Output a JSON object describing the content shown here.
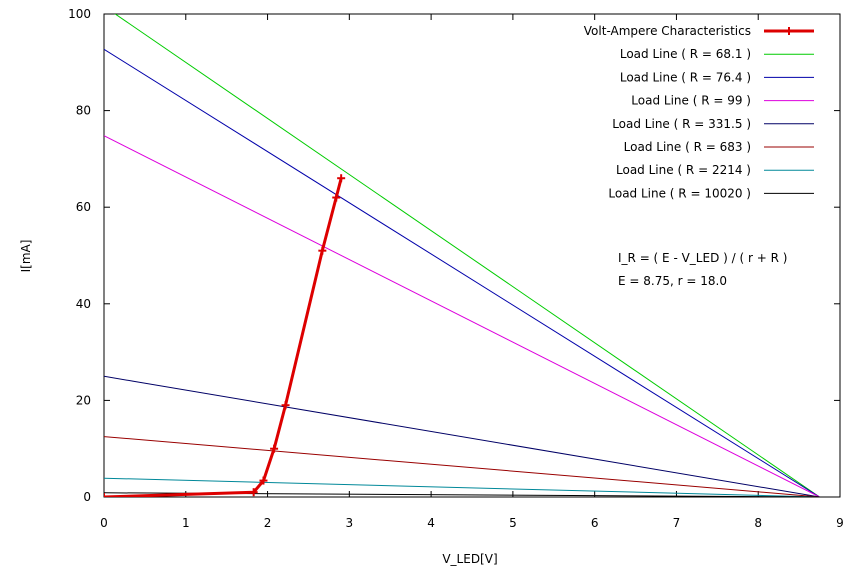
{
  "chart_data": {
    "type": "line",
    "title": "",
    "xlabel": "V_LED[V]",
    "ylabel": "I[mA]",
    "xlim": [
      0,
      9
    ],
    "ylim": [
      0,
      100
    ],
    "x_ticks": [
      0,
      1,
      2,
      3,
      4,
      5,
      6,
      7,
      8,
      9
    ],
    "y_ticks": [
      0,
      20,
      40,
      60,
      80,
      100
    ],
    "grid": false,
    "legend_position": "top-right",
    "series": [
      {
        "name": "Volt-Ampere Characteristics",
        "color": "#dd0000",
        "style": "line-with-markers",
        "points": [
          [
            0,
            0
          ],
          [
            1.83,
            1.0
          ],
          [
            1.95,
            3.4
          ],
          [
            2.08,
            10.0
          ],
          [
            2.22,
            19.0
          ],
          [
            2.67,
            51.0
          ],
          [
            2.84,
            62.0
          ],
          [
            2.9,
            66.0
          ]
        ]
      },
      {
        "name": "Load Line ( R = 68.1 )",
        "color": "#00cc00",
        "style": "line",
        "points": [
          [
            0,
            101.6
          ],
          [
            8.75,
            0
          ]
        ]
      },
      {
        "name": "Load Line ( R = 76.4 )",
        "color": "#0000aa",
        "style": "line",
        "points": [
          [
            0,
            92.7
          ],
          [
            8.75,
            0
          ]
        ]
      },
      {
        "name": "Load Line ( R = 99 )",
        "color": "#dd00dd",
        "style": "line",
        "points": [
          [
            0,
            74.8
          ],
          [
            8.75,
            0
          ]
        ]
      },
      {
        "name": "Load Line ( R = 331.5 )",
        "color": "#000066",
        "style": "line",
        "points": [
          [
            0,
            25.0
          ],
          [
            8.75,
            0
          ]
        ]
      },
      {
        "name": "Load Line ( R = 683 )",
        "color": "#990000",
        "style": "line",
        "points": [
          [
            0,
            12.5
          ],
          [
            8.75,
            0
          ]
        ]
      },
      {
        "name": "Load Line ( R = 2214 )",
        "color": "#008899",
        "style": "line",
        "points": [
          [
            0,
            3.9
          ],
          [
            8.75,
            0
          ]
        ]
      },
      {
        "name": "Load Line ( R = 10020 )",
        "color": "#000000",
        "style": "line",
        "points": [
          [
            0,
            0.87
          ],
          [
            8.75,
            0
          ]
        ]
      }
    ],
    "annotations": [
      "I_R = ( E - V_LED ) / ( r + R )",
      "E = 8.75, r = 18.0"
    ]
  }
}
